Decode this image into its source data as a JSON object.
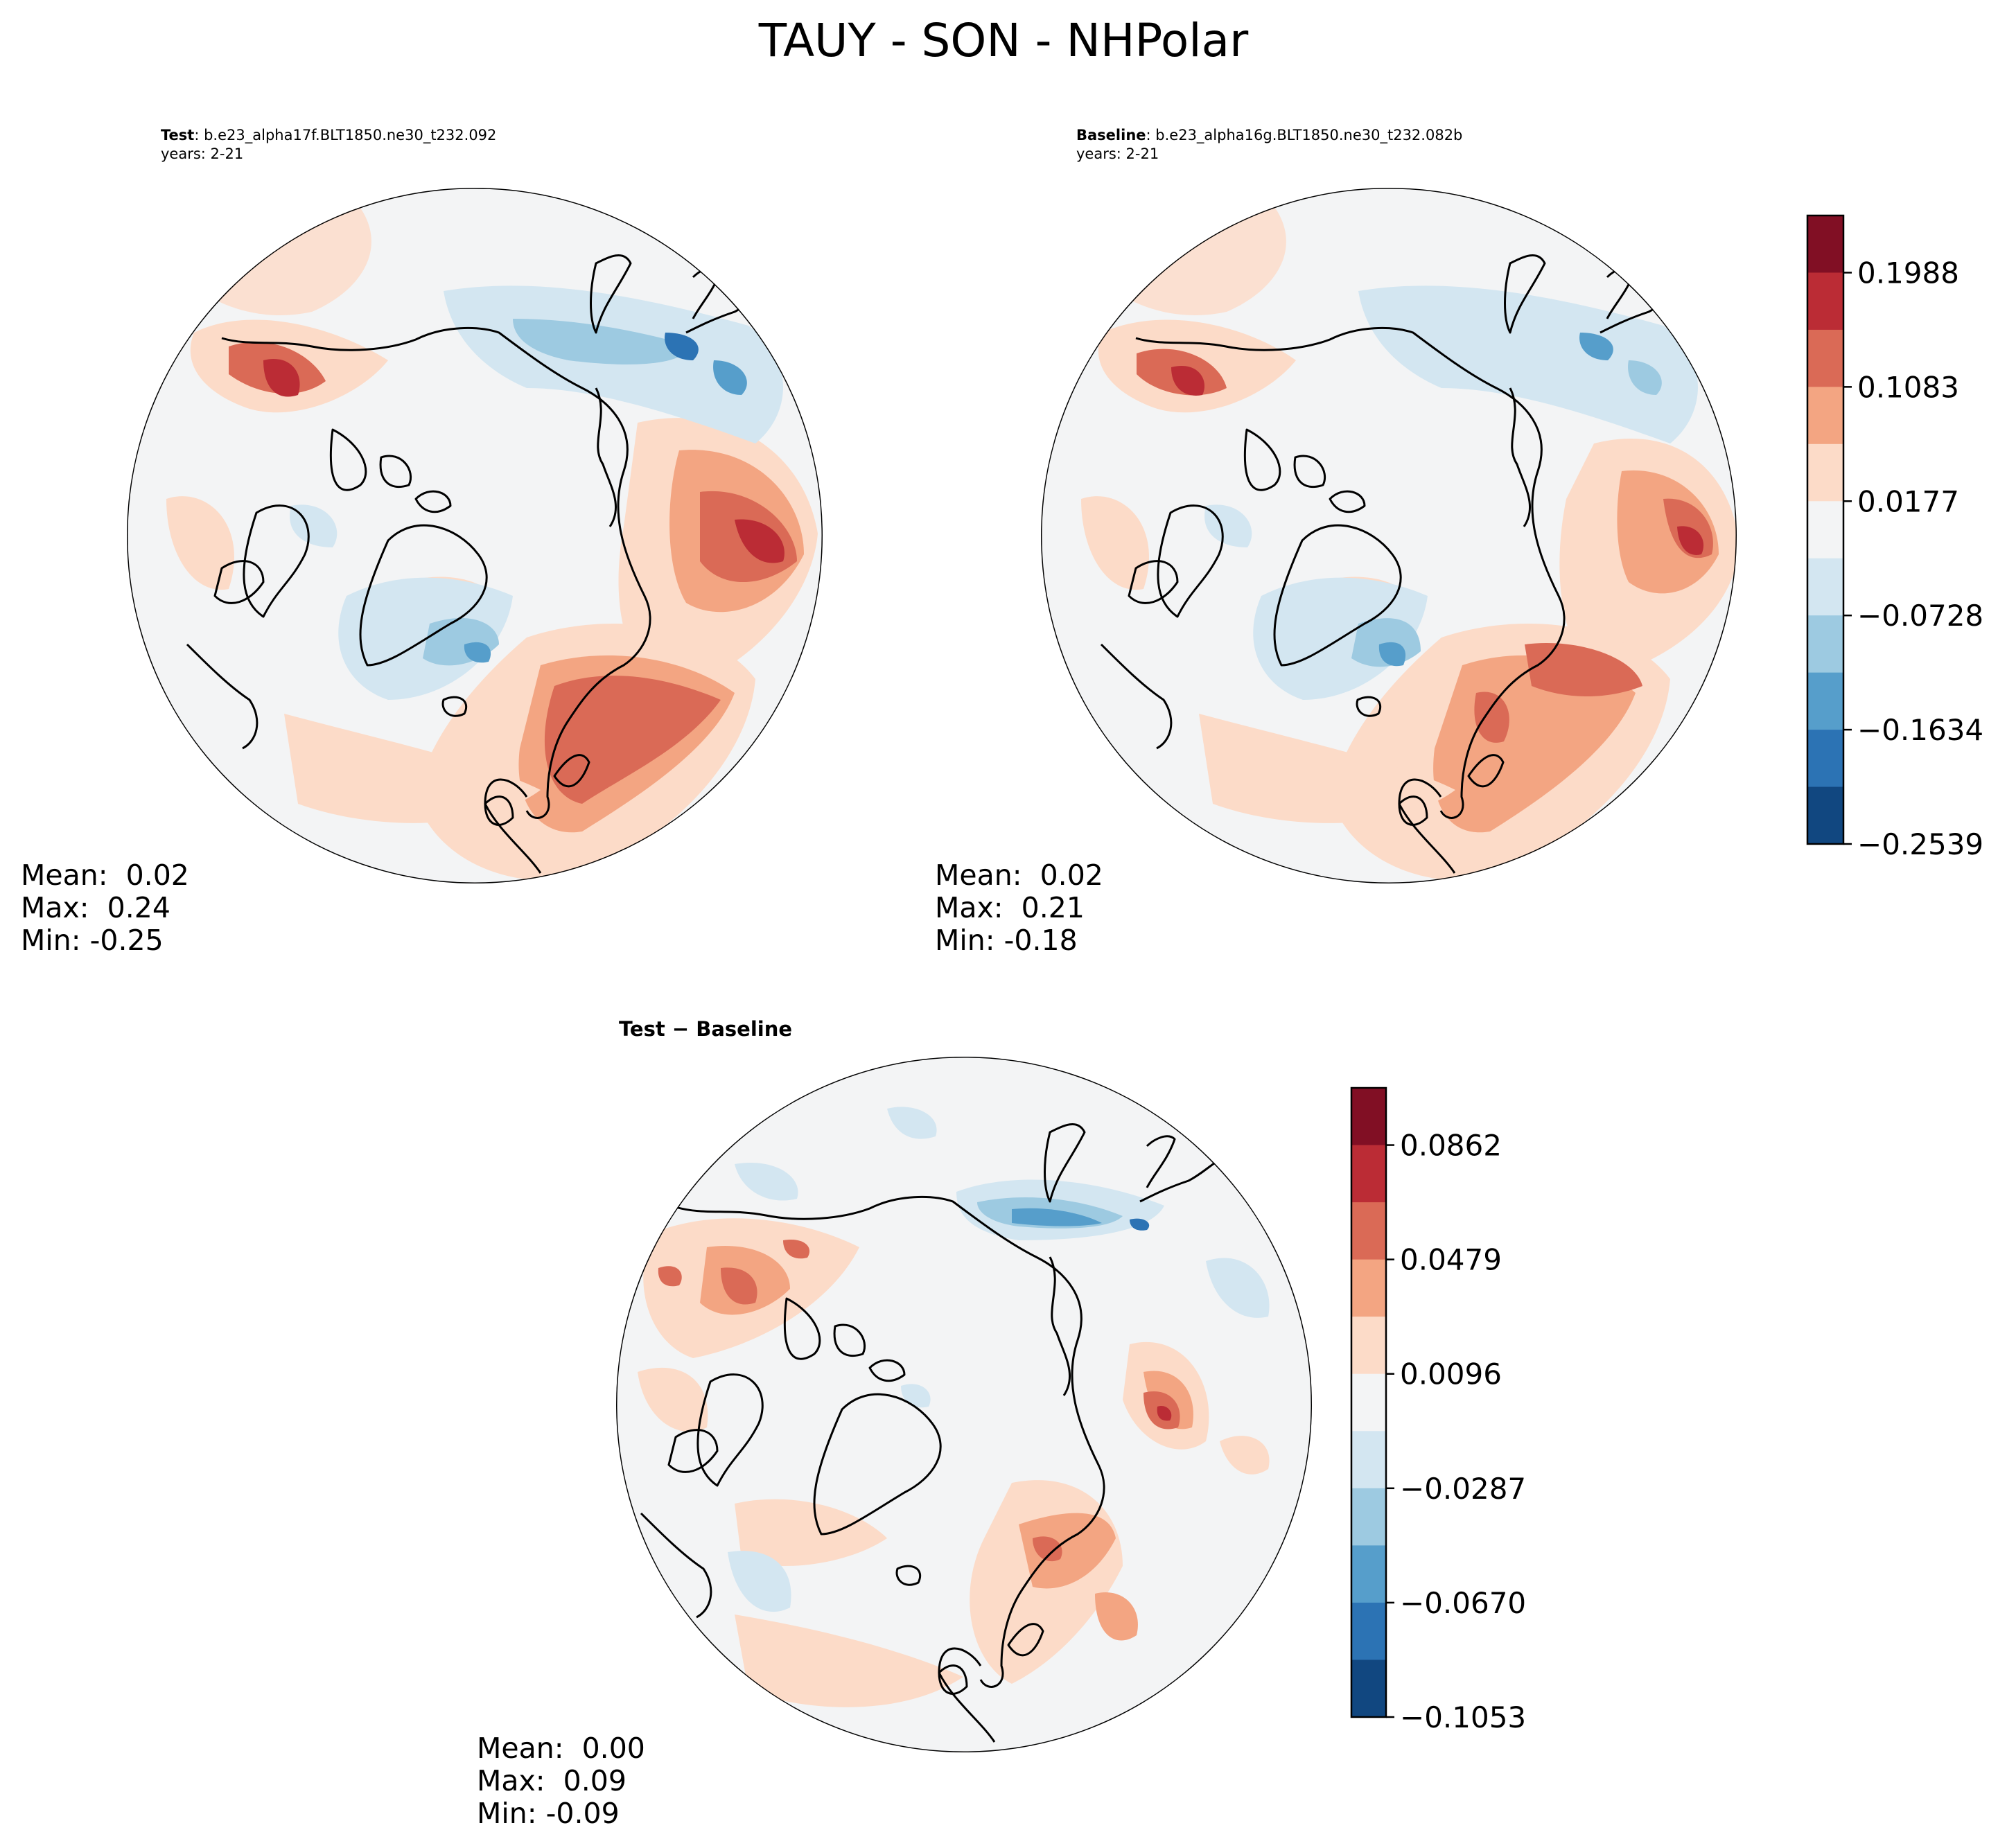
{
  "title": "TAUY - SON - NHPolar",
  "panels": [
    {
      "name": "Test",
      "case": "b.e23_alpha17f.BLT1850.ne30_t232.092",
      "years": "years: 2-21",
      "stats": {
        "mean": "Mean:  0.02",
        "max": "Max:  0.24",
        "min": "Min: -0.25"
      }
    },
    {
      "name": "Baseline",
      "case": "b.e23_alpha16g.BLT1850.ne30_t232.082b",
      "years": "years: 2-21",
      "stats": {
        "mean": "Mean:  0.02",
        "max": "Max:  0.21",
        "min": "Min: -0.18"
      }
    },
    {
      "name": "Test - Baseline",
      "title": "Test − Baseline",
      "stats": {
        "mean": "Mean:  0.00",
        "max": "Max:  0.09",
        "min": "Min: -0.09"
      }
    }
  ],
  "colors": {
    "levels": [
      "#114780",
      "#2c73b4",
      "#569ecb",
      "#9dcae1",
      "#d3e6f1",
      "#f3f4f5",
      "#fcdbc8",
      "#f3a582",
      "#da6a56",
      "#bb2c35",
      "#810f24"
    ],
    "coast": "#000000",
    "background": "#f3f4f5"
  },
  "chart_data": [
    {
      "type": "heatmap",
      "projection": "NorthPolarStereo",
      "title": "Test: b.e23_alpha17f.BLT1850.ne30_t232.092",
      "colorbar_ticks": [
        "0.1988",
        "0.1083",
        "0.0177",
        "−0.0728",
        "−0.1634",
        "−0.2539"
      ],
      "colorbar_range": [
        -0.2539,
        0.2441
      ],
      "mean": 0.02,
      "max": 0.24,
      "min": -0.25
    },
    {
      "type": "heatmap",
      "projection": "NorthPolarStereo",
      "title": "Baseline: b.e23_alpha16g.BLT1850.ne30_t232.082b",
      "colorbar_shared_with": 0,
      "mean": 0.02,
      "max": 0.21,
      "min": -0.18
    },
    {
      "type": "heatmap",
      "projection": "NorthPolarStereo",
      "title": "Test − Baseline",
      "colorbar_ticks": [
        "0.0862",
        "0.0479",
        "0.0096",
        "−0.0287",
        "−0.0670",
        "−0.1053"
      ],
      "colorbar_range": [
        -0.1053,
        0.1053
      ],
      "mean": 0.0,
      "max": 0.09,
      "min": -0.09
    }
  ]
}
